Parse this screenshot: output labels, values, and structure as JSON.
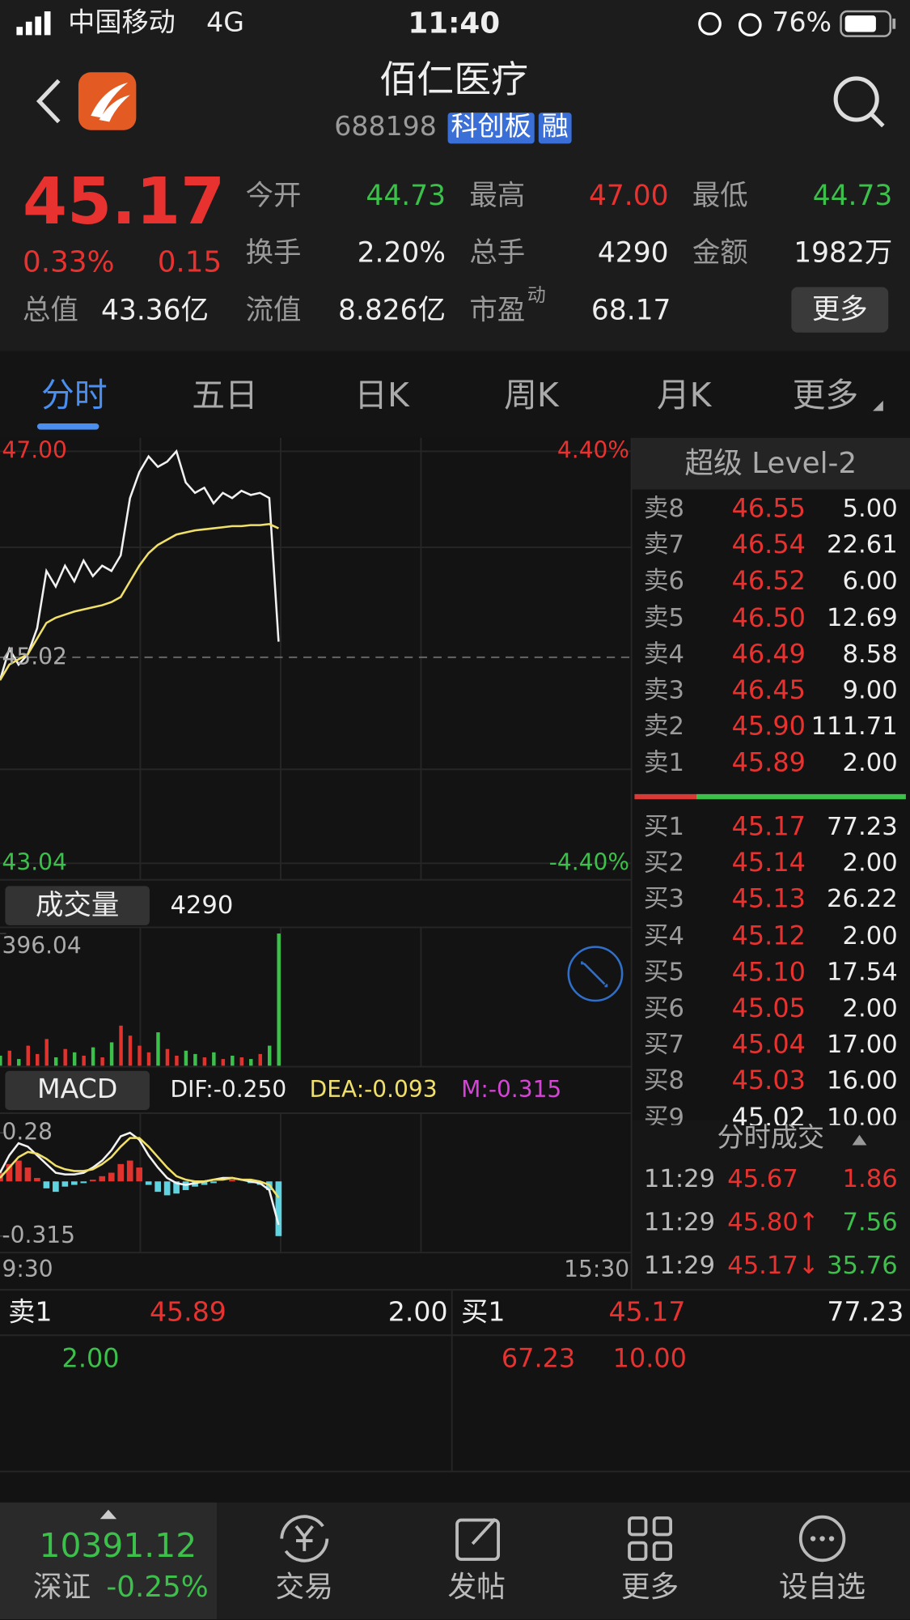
{
  "status_bar": {
    "carrier": "中国移动",
    "network": "4G",
    "time": "11:40",
    "battery": "76%"
  },
  "header": {
    "name": "佰仁医疗",
    "code": "688198",
    "tags": [
      "科创板",
      "融"
    ]
  },
  "quote": {
    "price": "45.17",
    "change_pct": "0.33%",
    "change": "0.15",
    "stats": [
      {
        "label": "今开",
        "value": "44.73",
        "color": "#3dbf4b"
      },
      {
        "label": "最高",
        "value": "47.00",
        "color": "#e8322f"
      },
      {
        "label": "最低",
        "value": "44.73",
        "color": "#3dbf4b"
      },
      {
        "label": "换手",
        "value": "2.20%",
        "color": "#eeeeee"
      },
      {
        "label": "总手",
        "value": "4290",
        "color": "#eeeeee"
      },
      {
        "label": "金额",
        "value": "1982万",
        "color": "#eeeeee"
      },
      {
        "label": "总值",
        "value": "43.36亿",
        "color": "#eeeeee"
      },
      {
        "label": "流值",
        "value": "8.826亿",
        "color": "#eeeeee"
      },
      {
        "label": "市盈",
        "sup": "动",
        "value": "68.17",
        "color": "#eeeeee"
      }
    ],
    "more": "更多"
  },
  "tabs": [
    "分时",
    "五日",
    "日K",
    "周K",
    "月K",
    "更多"
  ],
  "chart_data": {
    "type": "line",
    "ylim": [
      43.04,
      47
    ],
    "yticks": [
      {
        "value": 47,
        "label": "47.00"
      },
      45.02,
      43.04
    ],
    "y2lim": [
      -4.4,
      4.4
    ],
    "y2ticks": [
      {
        "value": 4.4,
        "label": "4.40%"
      },
      {
        "value": -4.4,
        "label": "-4.40%"
      }
    ],
    "x_labels": [
      "9:30",
      "15:30"
    ],
    "series": [
      {
        "color": "#f2f2f2",
        "values": [
          44.8,
          45.1,
          44.95,
          45.05,
          45.3,
          45.85,
          45.7,
          45.9,
          45.75,
          45.95,
          45.8,
          45.9,
          45.85,
          46.0,
          46.55,
          46.8,
          46.95,
          46.85,
          46.9,
          47.0,
          46.7,
          46.6,
          46.65,
          46.5,
          46.6,
          46.55,
          46.62,
          46.58,
          46.6,
          46.55,
          45.17
        ]
      },
      {
        "color": "#f0e06a",
        "values": [
          44.8,
          44.95,
          45.0,
          45.05,
          45.2,
          45.35,
          45.4,
          45.43,
          45.46,
          45.48,
          45.5,
          45.52,
          45.55,
          45.6,
          45.75,
          45.9,
          46.02,
          46.1,
          46.15,
          46.2,
          46.22,
          46.24,
          46.25,
          46.26,
          46.27,
          46.28,
          46.28,
          46.29,
          46.29,
          46.3,
          46.26
        ]
      }
    ],
    "volume": {
      "title": "成交量",
      "total": "4290",
      "ylim": [
        0,
        396.04
      ],
      "yticks": [
        396.04
      ],
      "values": [
        30,
        45,
        20,
        60,
        35,
        80,
        25,
        50,
        40,
        30,
        55,
        25,
        70,
        120,
        90,
        60,
        40,
        100,
        50,
        30,
        45,
        35,
        25,
        40,
        20,
        30,
        25,
        20,
        35,
        60,
        396
      ]
    },
    "macd": {
      "title": "MACD",
      "dif_label": "DIF:-0.250",
      "dea_label": "DEA:-0.093",
      "m_label": "M:-0.315",
      "ylim": [
        -0.315,
        0.28
      ],
      "yticks": [
        0.28,
        -0.315
      ],
      "series": [
        {
          "color": "#f2f2f2",
          "values": [
            0.05,
            0.15,
            0.22,
            0.2,
            0.15,
            0.1,
            0.05,
            0.04,
            0.04,
            0.05,
            0.08,
            0.12,
            0.18,
            0.26,
            0.28,
            0.24,
            0.15,
            0.08,
            0.02,
            -0.01,
            -0.02,
            -0.01,
            0,
            0.01,
            0.02,
            0.02,
            0.01,
            0,
            -0.01,
            -0.05,
            -0.25
          ]
        },
        {
          "color": "#f0e06a",
          "values": [
            0.02,
            0.08,
            0.14,
            0.17,
            0.16,
            0.13,
            0.09,
            0.07,
            0.06,
            0.06,
            0.07,
            0.1,
            0.14,
            0.2,
            0.25,
            0.25,
            0.2,
            0.14,
            0.08,
            0.03,
            0.01,
            0,
            0,
            0.01,
            0.01,
            0.02,
            0.01,
            0.01,
            0,
            -0.02,
            -0.093
          ]
        }
      ],
      "values": [
        0.05,
        0.1,
        0.12,
        0.08,
        0.02,
        -0.04,
        -0.06,
        -0.03,
        -0.02,
        -0.01,
        0.01,
        0.03,
        0.05,
        0.1,
        0.12,
        0.08,
        -0.02,
        -0.06,
        -0.08,
        -0.07,
        -0.05,
        -0.03,
        -0.02,
        -0.01,
        0,
        0.01,
        0,
        -0.01,
        -0.02,
        -0.05,
        -0.315
      ]
    }
  },
  "order_book": {
    "title": "超级 Level-2",
    "asks": [
      {
        "label": "卖8",
        "price": "46.55",
        "volume": "5.00"
      },
      {
        "label": "卖7",
        "price": "46.54",
        "volume": "22.61"
      },
      {
        "label": "卖6",
        "price": "46.52",
        "volume": "6.00"
      },
      {
        "label": "卖5",
        "price": "46.50",
        "volume": "12.69"
      },
      {
        "label": "卖4",
        "price": "46.49",
        "volume": "8.58"
      },
      {
        "label": "卖3",
        "price": "46.45",
        "volume": "9.00"
      },
      {
        "label": "卖2",
        "price": "45.90",
        "volume": "111.71"
      },
      {
        "label": "卖1",
        "price": "45.89",
        "volume": "2.00"
      }
    ],
    "bids": [
      {
        "label": "买1",
        "price": "45.17",
        "volume": "77.23"
      },
      {
        "label": "买2",
        "price": "45.14",
        "volume": "2.00"
      },
      {
        "label": "买3",
        "price": "45.13",
        "volume": "26.22"
      },
      {
        "label": "买4",
        "price": "45.12",
        "volume": "2.00"
      },
      {
        "label": "买5",
        "price": "45.10",
        "volume": "17.54"
      },
      {
        "label": "买6",
        "price": "45.05",
        "volume": "2.00"
      },
      {
        "label": "买7",
        "price": "45.04",
        "volume": "17.00"
      },
      {
        "label": "买8",
        "price": "45.03",
        "volume": "16.00"
      },
      {
        "label": "买9",
        "price": "45.02",
        "volume": "10.00"
      }
    ]
  },
  "trades": {
    "title": "分时成交",
    "rows": [
      {
        "time": "11:29",
        "price": "45.67",
        "volume": "1.86",
        "color": "#e8322f"
      },
      {
        "time": "11:29",
        "price": "45.80↑",
        "volume": "7.56",
        "color": "#3dbf4b"
      },
      {
        "time": "11:29",
        "price": "45.17↓",
        "volume": "35.76",
        "color": "#3dbf4b"
      }
    ]
  },
  "depth": {
    "left": {
      "label": "卖1",
      "price": "45.89",
      "volume": "2.00",
      "extra": [
        "2.00"
      ]
    },
    "right": {
      "label": "买1",
      "price": "45.17",
      "volume": "77.23",
      "extra": [
        "67.23",
        "10.00"
      ]
    }
  },
  "nav": {
    "index": {
      "value": "10391.12",
      "name": "深证",
      "change": "-0.25%"
    },
    "items": [
      "交易",
      "发帖",
      "更多",
      "设自选"
    ]
  }
}
